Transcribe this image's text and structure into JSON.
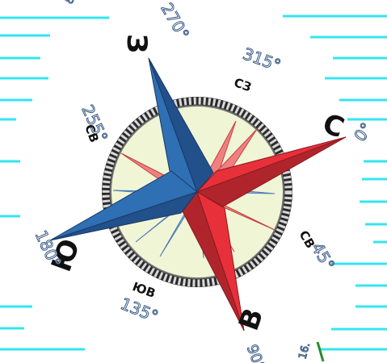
{
  "colors": {
    "line": "#33e6f0",
    "green_mark": "#2e8b2e",
    "dial_fill": "#f0f5d5",
    "dial_ring": "#6e6e6e",
    "star_red": "#e8303a",
    "star_red_dark": "#b0252c",
    "star_blue": "#2f6fb4",
    "star_blue_dark": "#21508a",
    "minor_pink": "#f08080",
    "minor_lightblue": "#8fb7e6",
    "degree_outline": "#3a5a86"
  },
  "compass": {
    "cardinals": [
      {
        "label": "З",
        "role": "west"
      },
      {
        "label": "С",
        "role": "north"
      },
      {
        "label": "В",
        "role": "east"
      },
      {
        "label": "Ю",
        "role": "south"
      }
    ],
    "intercardinals": [
      {
        "label": "СЗ",
        "role": "northwest"
      },
      {
        "label": "СВ",
        "role": "northeast-left"
      },
      {
        "label": "СВ",
        "role": "northeast-right"
      },
      {
        "label": "ЮВ",
        "role": "southeast"
      }
    ],
    "degrees": [
      {
        "label": "270°",
        "role": "west"
      },
      {
        "label": "315°",
        "role": "northwest"
      },
      {
        "label": "0°",
        "role": "north"
      },
      {
        "label": "45°",
        "role": "northeast"
      },
      {
        "label": "90°",
        "role": "east"
      },
      {
        "label": "135°",
        "role": "southeast"
      },
      {
        "label": "180°",
        "role": "south"
      },
      {
        "label": "255°",
        "role": "left-mid"
      }
    ],
    "corner_fragments": [
      {
        "label": "8",
        "role": "top-left"
      },
      {
        "label": "16.",
        "role": "bottom-right"
      }
    ]
  }
}
